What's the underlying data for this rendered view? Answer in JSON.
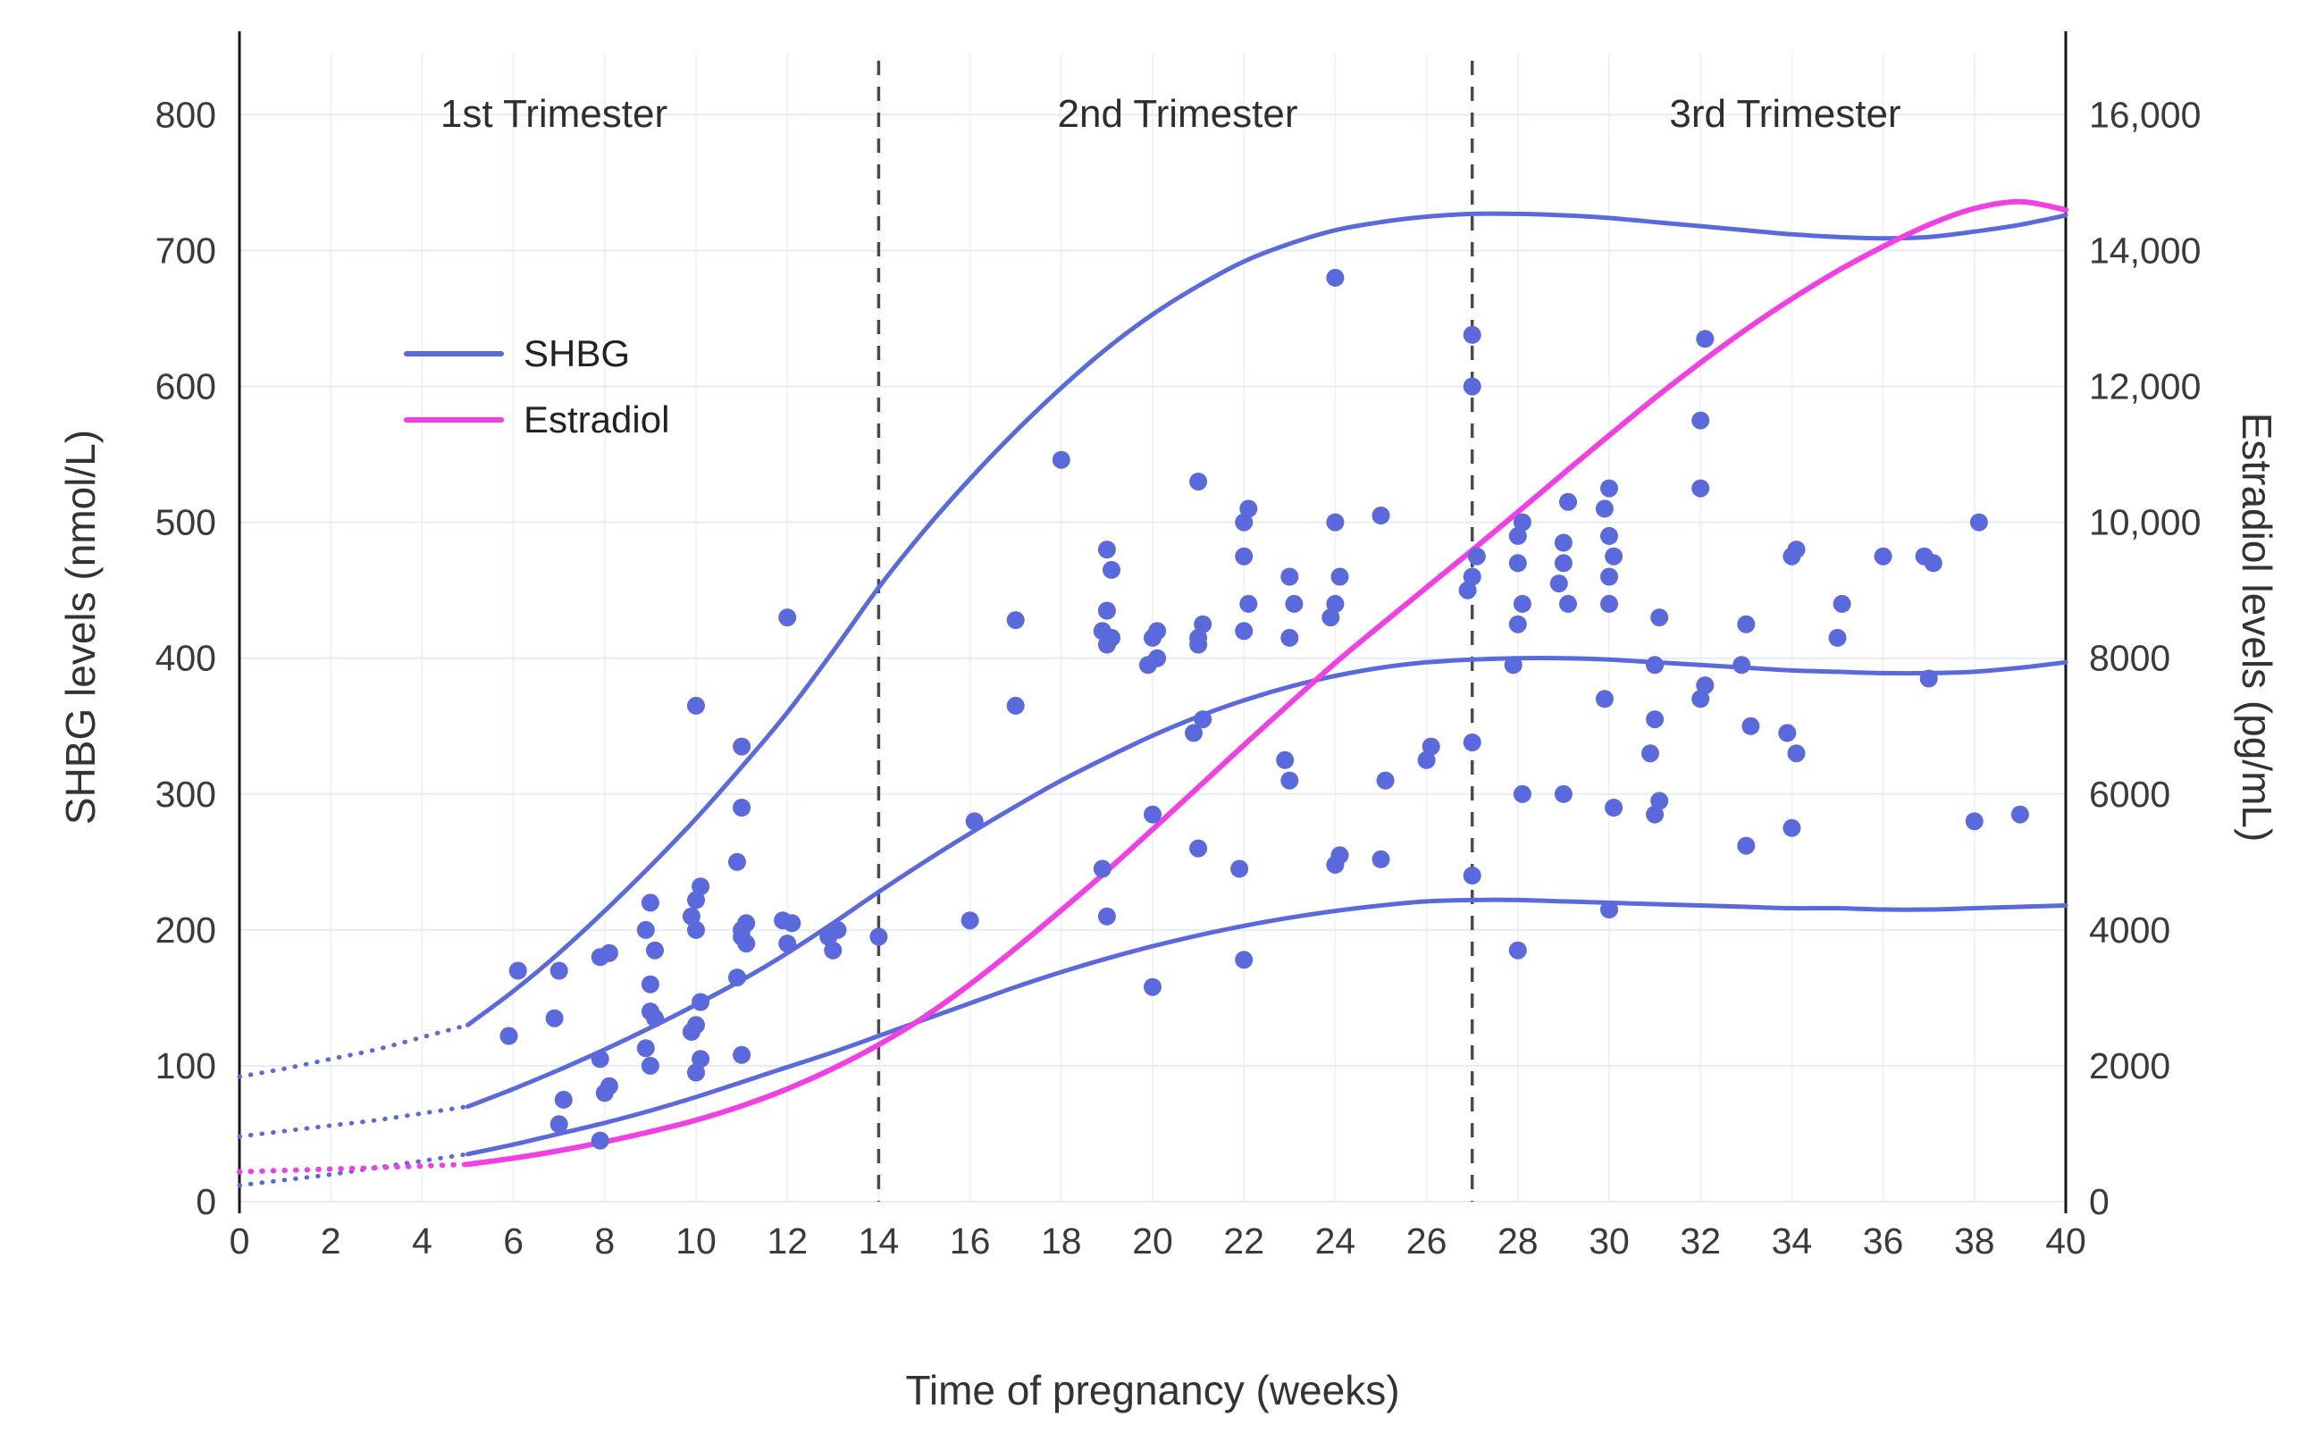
{
  "chart_data": {
    "type": "scatter",
    "title": "",
    "xlabel": "Time of pregnancy (weeks)",
    "ylabel_left": "SHBG levels (nmol/L)",
    "ylabel_right": "Estradiol levels (pg/mL)",
    "xlim": [
      0,
      40
    ],
    "ylim_left": [
      0,
      845
    ],
    "ylim_right": [
      0,
      16900
    ],
    "x_ticks": [
      0,
      2,
      4,
      6,
      8,
      10,
      12,
      14,
      16,
      18,
      20,
      22,
      24,
      26,
      28,
      30,
      32,
      34,
      36,
      38,
      40
    ],
    "y_ticks_left": [
      0,
      100,
      200,
      300,
      400,
      500,
      600,
      700,
      800
    ],
    "y_ticks_right": [
      0,
      2000,
      4000,
      6000,
      8000,
      10000,
      12000,
      14000,
      16000
    ],
    "y_tick_labels_right": [
      "0",
      "2000",
      "4000",
      "6000",
      "8000",
      "10,000",
      "12,000",
      "14,000",
      "16,000"
    ],
    "trimester_dividers": [
      14,
      27
    ],
    "trimesters": [
      {
        "label": "1st Trimester"
      },
      {
        "label": "2nd Trimester"
      },
      {
        "label": "3rd Trimester"
      }
    ],
    "legend": [
      {
        "label": "SHBG"
      },
      {
        "label": "Estradiol"
      }
    ],
    "colors": {
      "shbg": "#5a69dc",
      "estradiol": "#f23fe3",
      "grid_h": "#e6ecf7",
      "grid_v": "#eef2fb",
      "divider": "#4b4b4b",
      "axis": "#171717",
      "text": "#3a3a3a"
    },
    "curves": [
      {
        "name": "shbg-upper",
        "color": "shbg",
        "axis": "left",
        "width": 5,
        "leadin": [
          [
            0,
            92
          ],
          [
            1,
            98
          ],
          [
            2,
            105
          ],
          [
            3,
            112
          ],
          [
            4,
            121
          ],
          [
            5,
            130
          ]
        ],
        "points": [
          [
            5,
            130
          ],
          [
            6,
            155
          ],
          [
            7,
            183
          ],
          [
            8,
            214
          ],
          [
            9,
            247
          ],
          [
            10,
            282
          ],
          [
            11,
            320
          ],
          [
            12,
            360
          ],
          [
            13,
            405
          ],
          [
            14,
            452
          ],
          [
            15,
            494
          ],
          [
            16,
            532
          ],
          [
            17,
            567
          ],
          [
            18,
            599
          ],
          [
            19,
            628
          ],
          [
            20,
            653
          ],
          [
            21,
            674
          ],
          [
            22,
            692
          ],
          [
            23,
            705
          ],
          [
            24,
            715
          ],
          [
            25,
            721
          ],
          [
            26,
            725
          ],
          [
            27,
            727
          ],
          [
            28,
            727
          ],
          [
            29,
            726
          ],
          [
            30,
            724
          ],
          [
            31,
            721
          ],
          [
            32,
            718
          ],
          [
            33,
            715
          ],
          [
            34,
            712
          ],
          [
            35,
            710
          ],
          [
            36,
            709
          ],
          [
            37,
            710
          ],
          [
            38,
            714
          ],
          [
            39,
            719
          ],
          [
            40,
            726
          ]
        ]
      },
      {
        "name": "shbg-middle",
        "color": "shbg",
        "axis": "left",
        "width": 5,
        "leadin": [
          [
            0,
            48
          ],
          [
            1,
            52
          ],
          [
            2,
            56
          ],
          [
            3,
            60
          ],
          [
            4,
            65
          ],
          [
            5,
            70
          ]
        ],
        "points": [
          [
            5,
            70
          ],
          [
            6,
            83
          ],
          [
            7,
            97
          ],
          [
            8,
            112
          ],
          [
            9,
            128
          ],
          [
            10,
            145
          ],
          [
            11,
            163
          ],
          [
            12,
            183
          ],
          [
            13,
            205
          ],
          [
            14,
            228
          ],
          [
            15,
            250
          ],
          [
            16,
            271
          ],
          [
            17,
            291
          ],
          [
            18,
            310
          ],
          [
            19,
            327
          ],
          [
            20,
            343
          ],
          [
            21,
            357
          ],
          [
            22,
            369
          ],
          [
            23,
            379
          ],
          [
            24,
            387
          ],
          [
            25,
            393
          ],
          [
            26,
            397
          ],
          [
            27,
            399
          ],
          [
            28,
            400
          ],
          [
            29,
            400
          ],
          [
            30,
            399
          ],
          [
            31,
            397
          ],
          [
            32,
            395
          ],
          [
            33,
            393
          ],
          [
            34,
            391
          ],
          [
            35,
            390
          ],
          [
            36,
            389
          ],
          [
            37,
            389
          ],
          [
            38,
            390
          ],
          [
            39,
            393
          ],
          [
            40,
            397
          ]
        ]
      },
      {
        "name": "shbg-lower",
        "color": "shbg",
        "axis": "left",
        "width": 5,
        "leadin": [
          [
            0,
            12
          ],
          [
            1,
            16
          ],
          [
            2,
            20
          ],
          [
            3,
            25
          ],
          [
            4,
            30
          ],
          [
            5,
            35
          ]
        ],
        "points": [
          [
            5,
            35
          ],
          [
            6,
            42
          ],
          [
            7,
            50
          ],
          [
            8,
            58
          ],
          [
            9,
            67
          ],
          [
            10,
            77
          ],
          [
            11,
            88
          ],
          [
            12,
            99
          ],
          [
            13,
            110
          ],
          [
            14,
            122
          ],
          [
            15,
            134
          ],
          [
            16,
            146
          ],
          [
            17,
            158
          ],
          [
            18,
            169
          ],
          [
            19,
            179
          ],
          [
            20,
            188
          ],
          [
            21,
            196
          ],
          [
            22,
            203
          ],
          [
            23,
            209
          ],
          [
            24,
            214
          ],
          [
            25,
            218
          ],
          [
            26,
            221
          ],
          [
            27,
            222
          ],
          [
            28,
            222
          ],
          [
            29,
            221
          ],
          [
            30,
            220
          ],
          [
            31,
            219
          ],
          [
            32,
            218
          ],
          [
            33,
            217
          ],
          [
            34,
            216
          ],
          [
            35,
            216
          ],
          [
            36,
            215
          ],
          [
            37,
            215
          ],
          [
            38,
            216
          ],
          [
            39,
            217
          ],
          [
            40,
            218
          ]
        ]
      },
      {
        "name": "estradiol",
        "color": "estradiol",
        "axis": "right",
        "width": 6,
        "leadin": [
          [
            0,
            440
          ],
          [
            1,
            460
          ],
          [
            2,
            480
          ],
          [
            3,
            500
          ],
          [
            4,
            525
          ],
          [
            5,
            550
          ]
        ],
        "points": [
          [
            5,
            550
          ],
          [
            6,
            640
          ],
          [
            7,
            750
          ],
          [
            8,
            880
          ],
          [
            9,
            1030
          ],
          [
            10,
            1200
          ],
          [
            11,
            1410
          ],
          [
            12,
            1660
          ],
          [
            13,
            1960
          ],
          [
            14,
            2310
          ],
          [
            15,
            2720
          ],
          [
            16,
            3200
          ],
          [
            17,
            3730
          ],
          [
            18,
            4290
          ],
          [
            19,
            4870
          ],
          [
            20,
            5480
          ],
          [
            21,
            6100
          ],
          [
            22,
            6720
          ],
          [
            23,
            7330
          ],
          [
            24,
            7930
          ],
          [
            25,
            8490
          ],
          [
            26,
            9040
          ],
          [
            27,
            9590
          ],
          [
            28,
            10150
          ],
          [
            29,
            10720
          ],
          [
            30,
            11280
          ],
          [
            31,
            11830
          ],
          [
            32,
            12350
          ],
          [
            33,
            12840
          ],
          [
            34,
            13290
          ],
          [
            35,
            13700
          ],
          [
            36,
            14060
          ],
          [
            37,
            14380
          ],
          [
            38,
            14620
          ],
          [
            39,
            14720
          ],
          [
            40,
            14600
          ]
        ]
      }
    ],
    "scatter": {
      "name": "shbg-observations",
      "color": "shbg",
      "points": [
        [
          5.9,
          122
        ],
        [
          6.1,
          170
        ],
        [
          6.9,
          135
        ],
        [
          7,
          57
        ],
        [
          7,
          170
        ],
        [
          7.1,
          75
        ],
        [
          7.9,
          45
        ],
        [
          7.9,
          105
        ],
        [
          7.9,
          180
        ],
        [
          8,
          80
        ],
        [
          8.1,
          85
        ],
        [
          8.1,
          183
        ],
        [
          8.9,
          113
        ],
        [
          8.9,
          200
        ],
        [
          9,
          100
        ],
        [
          9,
          140
        ],
        [
          9,
          160
        ],
        [
          9,
          220
        ],
        [
          9.1,
          135
        ],
        [
          9.1,
          185
        ],
        [
          9.9,
          125
        ],
        [
          9.9,
          210
        ],
        [
          10,
          95
        ],
        [
          10,
          130
        ],
        [
          10,
          200
        ],
        [
          10,
          222
        ],
        [
          10,
          365
        ],
        [
          10.1,
          105
        ],
        [
          10.1,
          147
        ],
        [
          10.1,
          232
        ],
        [
          10.9,
          165
        ],
        [
          10.9,
          250
        ],
        [
          11,
          108
        ],
        [
          11,
          195
        ],
        [
          11,
          200
        ],
        [
          11,
          290
        ],
        [
          11,
          335
        ],
        [
          11.1,
          190
        ],
        [
          11.1,
          205
        ],
        [
          11.9,
          207
        ],
        [
          12,
          190
        ],
        [
          12,
          430
        ],
        [
          12.1,
          205
        ],
        [
          12.9,
          195
        ],
        [
          13,
          185
        ],
        [
          13.1,
          200
        ],
        [
          14,
          195
        ],
        [
          16,
          207
        ],
        [
          16.1,
          280
        ],
        [
          17,
          365
        ],
        [
          17,
          428
        ],
        [
          18,
          546
        ],
        [
          18.9,
          245
        ],
        [
          18.9,
          420
        ],
        [
          19,
          210
        ],
        [
          19,
          410
        ],
        [
          19,
          435
        ],
        [
          19,
          480
        ],
        [
          19.1,
          415
        ],
        [
          19.1,
          465
        ],
        [
          19.9,
          395
        ],
        [
          20,
          158
        ],
        [
          20,
          285
        ],
        [
          20,
          415
        ],
        [
          20.1,
          400
        ],
        [
          20.1,
          420
        ],
        [
          20.9,
          345
        ],
        [
          21,
          260
        ],
        [
          21,
          410
        ],
        [
          21,
          415
        ],
        [
          21,
          530
        ],
        [
          21.1,
          355
        ],
        [
          21.1,
          425
        ],
        [
          21.9,
          245
        ],
        [
          22,
          178
        ],
        [
          22,
          420
        ],
        [
          22,
          475
        ],
        [
          22,
          500
        ],
        [
          22.1,
          440
        ],
        [
          22.1,
          510
        ],
        [
          22.9,
          325
        ],
        [
          23,
          310
        ],
        [
          23,
          415
        ],
        [
          23,
          460
        ],
        [
          23.1,
          440
        ],
        [
          23.9,
          430
        ],
        [
          24,
          248
        ],
        [
          24,
          440
        ],
        [
          24,
          500
        ],
        [
          24,
          680
        ],
        [
          24.1,
          255
        ],
        [
          24.1,
          460
        ],
        [
          25,
          252
        ],
        [
          25,
          505
        ],
        [
          25.1,
          310
        ],
        [
          26,
          325
        ],
        [
          26.1,
          335
        ],
        [
          26.9,
          450
        ],
        [
          27,
          240
        ],
        [
          27,
          338
        ],
        [
          27,
          460
        ],
        [
          27,
          600
        ],
        [
          27,
          638
        ],
        [
          27.1,
          475
        ],
        [
          27.9,
          395
        ],
        [
          28,
          185
        ],
        [
          28,
          425
        ],
        [
          28,
          470
        ],
        [
          28,
          490
        ],
        [
          28.1,
          300
        ],
        [
          28.1,
          440
        ],
        [
          28.1,
          500
        ],
        [
          28.9,
          455
        ],
        [
          29,
          300
        ],
        [
          29,
          470
        ],
        [
          29,
          485
        ],
        [
          29.1,
          440
        ],
        [
          29.1,
          515
        ],
        [
          29.9,
          370
        ],
        [
          29.9,
          510
        ],
        [
          30,
          215
        ],
        [
          30,
          440
        ],
        [
          30,
          460
        ],
        [
          30,
          490
        ],
        [
          30,
          525
        ],
        [
          30.1,
          290
        ],
        [
          30.1,
          475
        ],
        [
          30.9,
          330
        ],
        [
          31,
          285
        ],
        [
          31,
          355
        ],
        [
          31,
          395
        ],
        [
          31.1,
          295
        ],
        [
          31.1,
          430
        ],
        [
          32,
          370
        ],
        [
          32,
          525
        ],
        [
          32,
          575
        ],
        [
          32.1,
          380
        ],
        [
          32.1,
          635
        ],
        [
          32.9,
          395
        ],
        [
          33,
          262
        ],
        [
          33,
          425
        ],
        [
          33.1,
          350
        ],
        [
          33.9,
          345
        ],
        [
          34,
          275
        ],
        [
          34,
          475
        ],
        [
          34.1,
          330
        ],
        [
          34.1,
          480
        ],
        [
          35,
          415
        ],
        [
          35.1,
          440
        ],
        [
          36,
          475
        ],
        [
          36.9,
          475
        ],
        [
          37,
          385
        ],
        [
          37.1,
          470
        ],
        [
          38,
          280
        ],
        [
          38.1,
          500
        ],
        [
          39,
          285
        ]
      ]
    }
  }
}
